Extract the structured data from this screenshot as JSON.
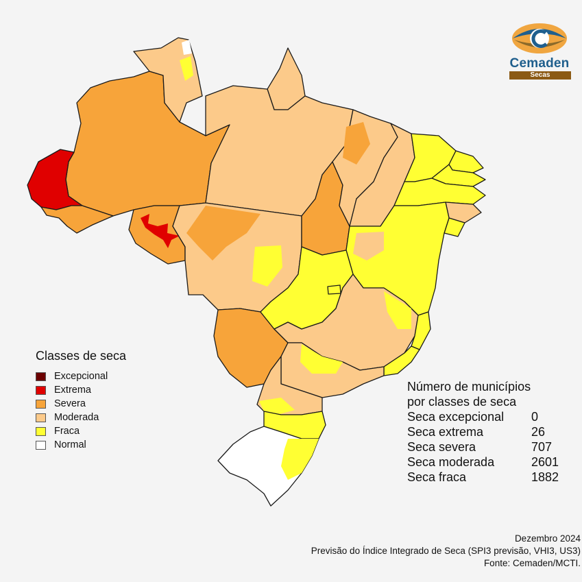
{
  "logo": {
    "name": "Cemaden",
    "subtitle": "Secas",
    "icon": "cemaden-eye-logo"
  },
  "colors": {
    "excepcional": "#6b0000",
    "extrema": "#e00000",
    "severa": "#f7a43a",
    "moderada": "#fcca8a",
    "fraca": "#ffff33",
    "normal": "#ffffff"
  },
  "legend": {
    "title": "Classes de seca",
    "items": [
      {
        "label": "Excepcional",
        "color": "#6b0000"
      },
      {
        "label": "Extrema",
        "color": "#e00000"
      },
      {
        "label": "Severa",
        "color": "#f7a43a"
      },
      {
        "label": "Moderada",
        "color": "#fcca8a"
      },
      {
        "label": "Fraca",
        "color": "#ffff33"
      },
      {
        "label": "Normal",
        "color": "#ffffff"
      }
    ]
  },
  "counts": {
    "title_line1": "Número de municípios",
    "title_line2": "por classes de seca",
    "rows": [
      {
        "label": "Seca excepcional",
        "value": "0"
      },
      {
        "label": "Seca extrema",
        "value": "26"
      },
      {
        "label": "Seca severa",
        "value": "707"
      },
      {
        "label": "Seca moderada",
        "value": "2601"
      },
      {
        "label": "Seca fraca",
        "value": "1882"
      }
    ]
  },
  "footer": {
    "date": "Dezembro 2024",
    "description": "Previsão do Índice Integrado de Seca (SPI3 previsão, VHI3, US3)",
    "source": "Fonte: Cemaden/MCTI."
  }
}
